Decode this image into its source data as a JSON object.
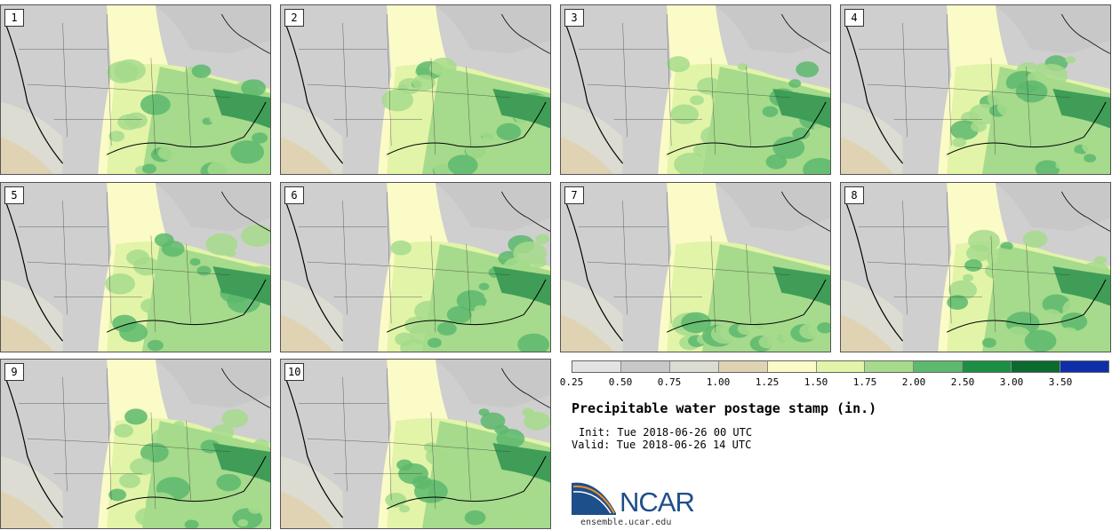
{
  "panels": [
    {
      "label": "1"
    },
    {
      "label": "2"
    },
    {
      "label": "3"
    },
    {
      "label": "4"
    },
    {
      "label": "5"
    },
    {
      "label": "6"
    },
    {
      "label": "7"
    },
    {
      "label": "8"
    },
    {
      "label": "9"
    },
    {
      "label": "10"
    }
  ],
  "colorbar": {
    "colors": [
      "#e3e3e3",
      "#c8c8c8",
      "#dddcd2",
      "#e0d3b4",
      "#fbfbc8",
      "#e2f4a8",
      "#a6da8c",
      "#5cb96d",
      "#1c8f45",
      "#0b6a2e",
      "#0f2fa8"
    ],
    "ticks": [
      "0.25",
      "0.50",
      "0.75",
      "1.00",
      "1.25",
      "1.50",
      "1.75",
      "2.00",
      "2.50",
      "3.00",
      "3.50"
    ]
  },
  "title": "Precipitable water postage stamp (in.)",
  "init_line": "Init: Tue 2018-06-26 00 UTC",
  "valid_line": "Valid: Tue 2018-06-26 14 UTC",
  "logo": {
    "text": "NCAR",
    "colors": {
      "blue": "#1d4f8a",
      "orange": "#f08c28"
    }
  },
  "site": "ensemble.ucar.edu"
}
